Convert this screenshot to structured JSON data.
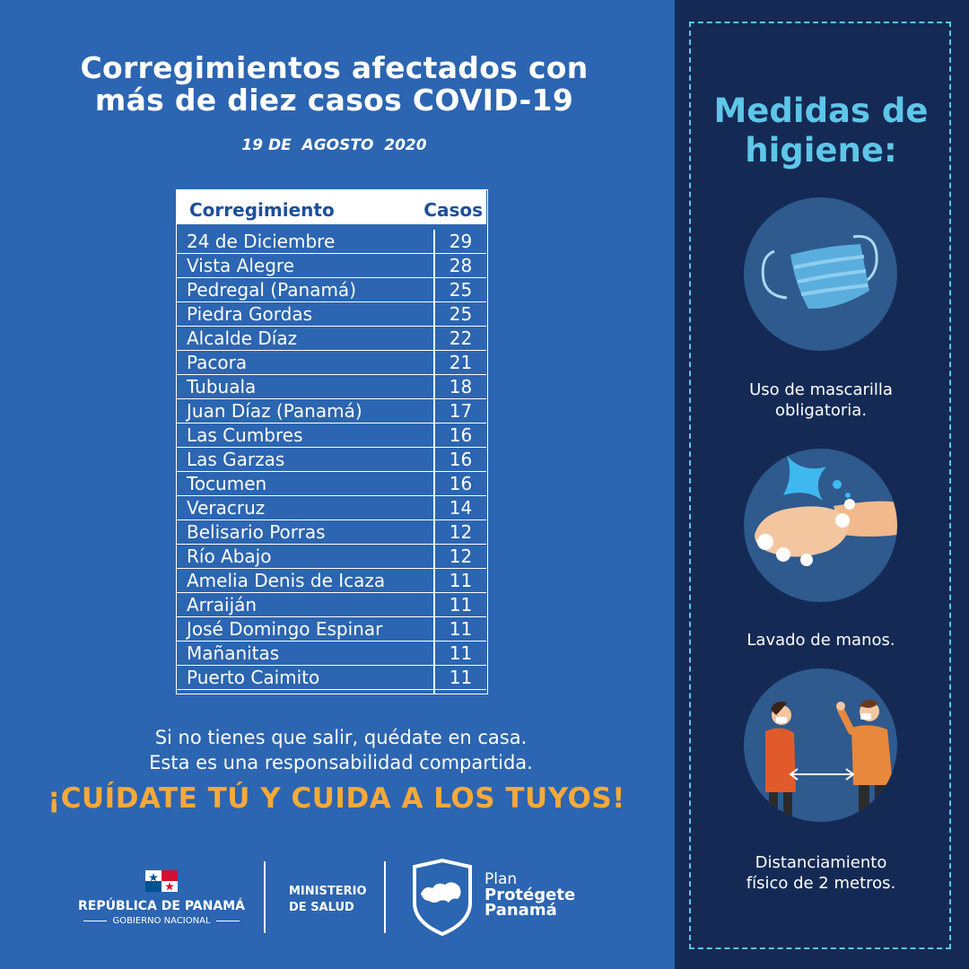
{
  "title_line1": "Corregimientos afectados con",
  "title_line2": "más de diez casos COVID-19",
  "date": "19 DE  AGOSTO  2020",
  "table": {
    "header_name": "Corregimiento",
    "header_value": "Casos",
    "rows": [
      {
        "name": "24 de Diciembre",
        "value": "29"
      },
      {
        "name": "Vista Alegre",
        "value": "28"
      },
      {
        "name": "Pedregal (Panamá)",
        "value": "25"
      },
      {
        "name": "Piedra Gordas",
        "value": "25"
      },
      {
        "name": "Alcalde Díaz",
        "value": "22"
      },
      {
        "name": "Pacora",
        "value": "21"
      },
      {
        "name": "Tubuala",
        "value": "18"
      },
      {
        "name": "Juan Díaz (Panamá)",
        "value": "17"
      },
      {
        "name": "Las Cumbres",
        "value": "16"
      },
      {
        "name": "Las Garzas",
        "value": "16"
      },
      {
        "name": "Tocumen",
        "value": "16"
      },
      {
        "name": "Veracruz",
        "value": "14"
      },
      {
        "name": "Belisario Porras",
        "value": "12"
      },
      {
        "name": "Río Abajo",
        "value": "12"
      },
      {
        "name": "Amelia Denis de Icaza",
        "value": "11"
      },
      {
        "name": "Arraiján",
        "value": "11"
      },
      {
        "name": "José Domingo Espinar",
        "value": "11"
      },
      {
        "name": "Mañanitas",
        "value": "11"
      },
      {
        "name": "Puerto Caimito",
        "value": "11"
      }
    ]
  },
  "message_line1": "Si no tienes que salir, quédate en casa.",
  "message_line2": "Esta es una responsabilidad compartida.",
  "slogan": "¡CUÍDATE TÚ Y CUIDA A LOS TUYOS!",
  "footer": {
    "republica": "REPÚBLICA DE PANAMÁ",
    "gobierno": "GOBIERNO NACIONAL",
    "ministerio_line1": "MINISTERIO",
    "ministerio_line2": "DE SALUD",
    "plan_line1": "Plan",
    "plan_line2": "Protégete",
    "plan_line3": "Panamá"
  },
  "hygiene": {
    "title_line1": "Medidas de",
    "title_line2": "higiene:",
    "items": [
      {
        "line1": "Uso de mascarilla",
        "line2": "obligatoria.",
        "icon": "face-mask-icon"
      },
      {
        "line1": "Lavado de manos.",
        "line2": "",
        "icon": "hand-washing-icon"
      },
      {
        "line1": "Distanciamiento",
        "line2": "físico de 2 metros.",
        "icon": "social-distancing-icon"
      }
    ]
  },
  "colors": {
    "background_left": "#2c65b1",
    "background_right": "#142a55",
    "accent_cyan": "#5ec6e8",
    "accent_orange": "#f6a93b",
    "header_text": "#1c4f9c"
  }
}
